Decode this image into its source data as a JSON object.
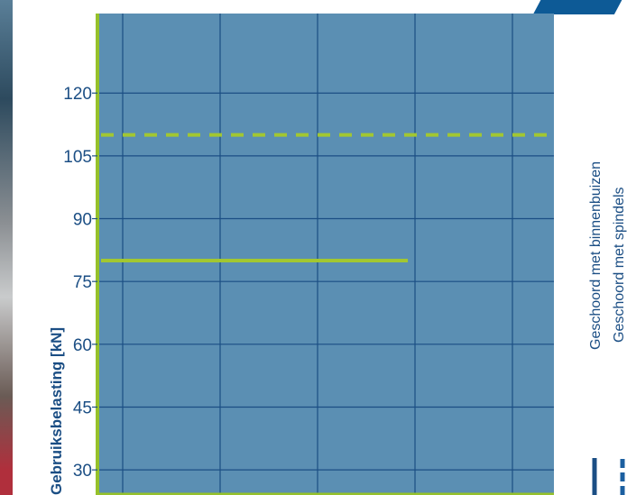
{
  "chart_data": {
    "type": "line",
    "title": "",
    "xlabel": "",
    "ylabel": "Gebruiksbelasting [kN]",
    "ylim": [
      24,
      139
    ],
    "yticks": [
      "30",
      "45",
      "60",
      "75",
      "90",
      "105",
      "120"
    ],
    "series": [
      {
        "name": "Geschoord met binnenbuizen",
        "style": "solid",
        "y": 80,
        "x_extent_fraction": 0.68
      },
      {
        "name": "Geschoord met spindels",
        "style": "dashed",
        "y": 110,
        "x_extent_fraction": 1.0
      }
    ],
    "grid": true
  },
  "colors": {
    "plot_background": "#5b8fb3",
    "grid": "#1b4e84",
    "axis": "#96c12b",
    "series_line": "#a2c731",
    "text": "#1b4e84",
    "legend_solid": "#1b4e84",
    "legend_dashed": "#1b5fa0"
  }
}
